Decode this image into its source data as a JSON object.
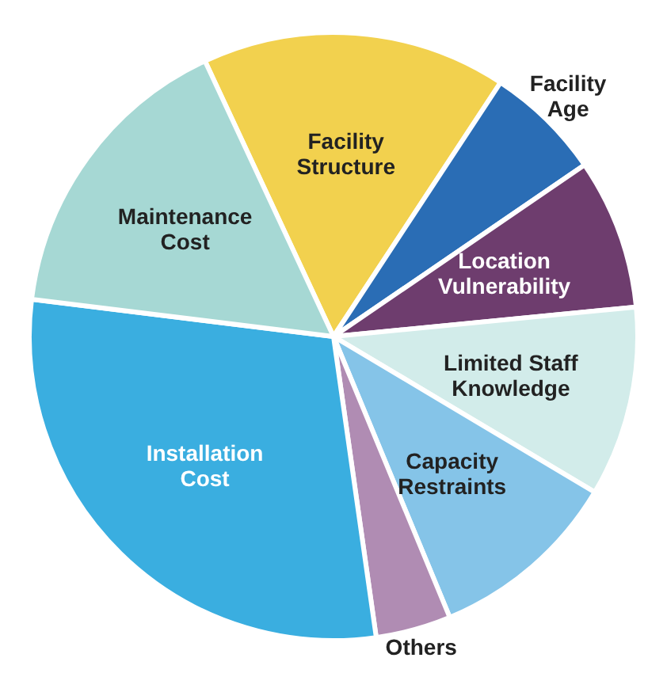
{
  "chart_data": {
    "type": "pie",
    "categories": [
      "Facility\nStructure",
      "Facility\nAge",
      "Location\nVulnerability",
      "Limited Staff\nKnowledge",
      "Capacity\nRestraints",
      "Others",
      "Installation\nCost",
      "Maintenance\nCost"
    ],
    "values": [
      16.2,
      6.2,
      8.0,
      10.1,
      10.2,
      4.0,
      29.2,
      16.1
    ],
    "colors": [
      "#f2d14e",
      "#2a6db5",
      "#6e3d6e",
      "#d2ecea",
      "#85c4e8",
      "#b08cb3",
      "#3aaee0",
      "#a6d8d4"
    ]
  }
}
